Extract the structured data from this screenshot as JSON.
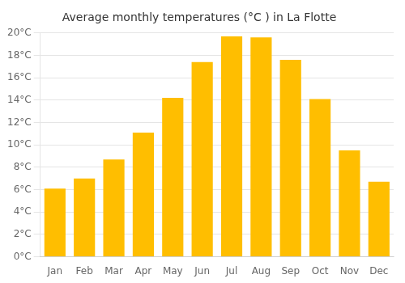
{
  "chart_data": {
    "type": "bar",
    "title": "Average monthly temperatures (°C ) in La Flotte",
    "categories": [
      "Jan",
      "Feb",
      "Mar",
      "Apr",
      "May",
      "Jun",
      "Jul",
      "Aug",
      "Sep",
      "Oct",
      "Nov",
      "Dec"
    ],
    "values": [
      6.1,
      7.0,
      8.7,
      11.1,
      14.2,
      17.4,
      19.7,
      19.6,
      17.6,
      14.1,
      9.5,
      6.7
    ],
    "color": "#FFBE00",
    "ylim": [
      0,
      20
    ],
    "yticks": [
      {
        "value": 0,
        "label": "0°C"
      },
      {
        "value": 2,
        "label": "2°C"
      },
      {
        "value": 4,
        "label": "4°C"
      },
      {
        "value": 6,
        "label": "6°C"
      },
      {
        "value": 8,
        "label": "8°C"
      },
      {
        "value": 10,
        "label": "10°C"
      },
      {
        "value": 12,
        "label": "12°C"
      },
      {
        "value": 14,
        "label": "14°C"
      },
      {
        "value": 16,
        "label": "16°C"
      },
      {
        "value": 18,
        "label": "18°C"
      },
      {
        "value": 20,
        "label": "20°C"
      }
    ],
    "grid": true
  }
}
